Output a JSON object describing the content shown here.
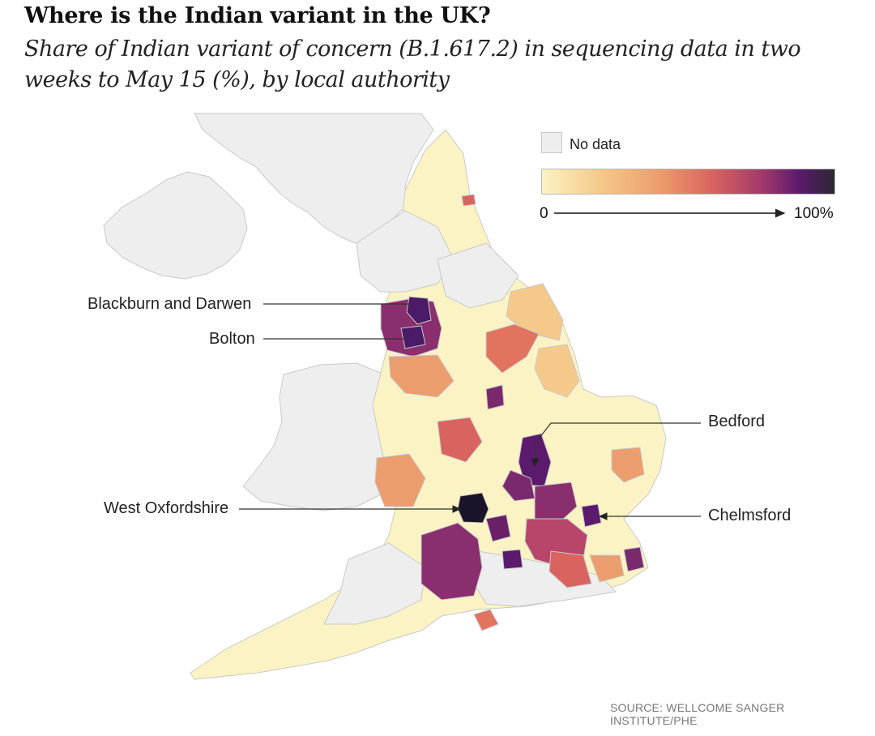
{
  "title": "Where is the Indian variant in the UK?",
  "subtitle": "Share of Indian variant of concern (B.1.617.2) in sequencing data in two weeks to May 15 (%), by local authority",
  "legend": {
    "no_data_label": "No data",
    "scale_min_label": "0",
    "scale_max_label": "100%",
    "no_data_color": "#eeeeee",
    "color_scale": [
      "#fbf3c4",
      "#f4c98a",
      "#ec9d6d",
      "#d9645f",
      "#a23a6b",
      "#5b1a6c",
      "#2b2832"
    ]
  },
  "annotations": {
    "blackburn": "Blackburn and Darwen",
    "bolton": "Bolton",
    "bedford": "Bedford",
    "west_oxfordshire": "West Oxfordshire",
    "chelmsford": "Chelmsford"
  },
  "source": "SOURCE: WELLCOME SANGER INSTITUTE/PHE"
}
